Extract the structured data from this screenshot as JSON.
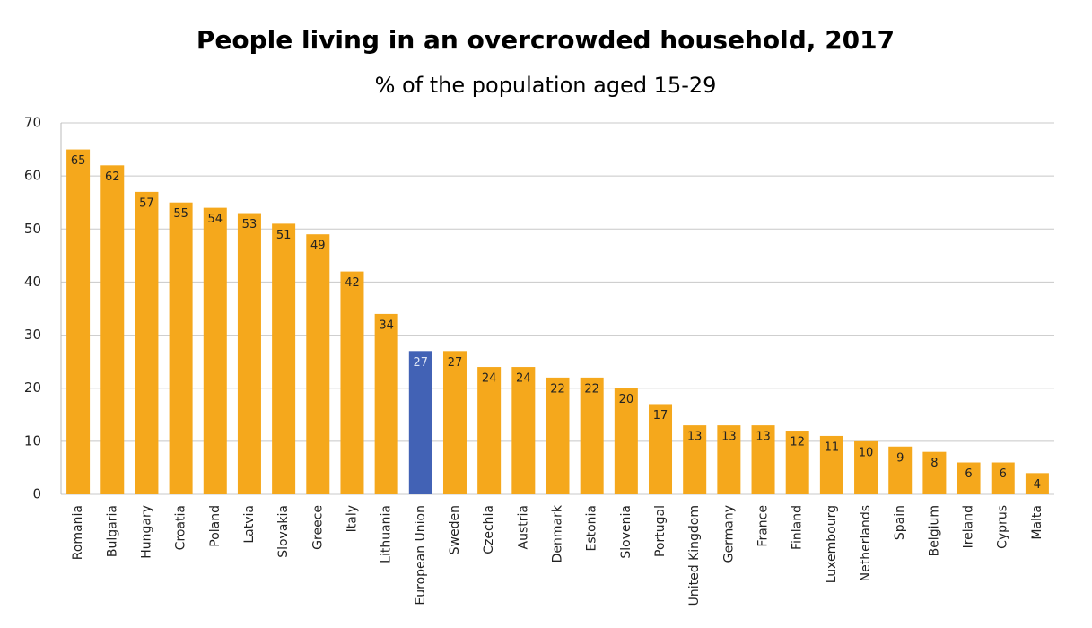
{
  "chart_data": {
    "type": "bar",
    "title": "People living in an overcrowded household, 2017",
    "subtitle": "% of the population aged 15-29",
    "categories": [
      "Romania",
      "Bulgaria",
      "Hungary",
      "Croatia",
      "Poland",
      "Latvia",
      "Slovakia",
      "Greece",
      "Italy",
      "Lithuania",
      "European Union",
      "Sweden",
      "Czechia",
      "Austria",
      "Denmark",
      "Estonia",
      "Slovenia",
      "Portugal",
      "United Kingdom",
      "Germany",
      "France",
      "Finland",
      "Luxembourg",
      "Netherlands",
      "Spain",
      "Belgium",
      "Ireland",
      "Cyprus",
      "Malta"
    ],
    "values": [
      65,
      62,
      57,
      55,
      54,
      53,
      51,
      49,
      42,
      34,
      27,
      27,
      24,
      24,
      22,
      22,
      20,
      17,
      13,
      13,
      13,
      12,
      11,
      10,
      9,
      8,
      6,
      6,
      4
    ],
    "colors": [
      "#f5a81c",
      "#f5a81c",
      "#f5a81c",
      "#f5a81c",
      "#f5a81c",
      "#f5a81c",
      "#f5a81c",
      "#f5a81c",
      "#f5a81c",
      "#f5a81c",
      "#4262b5",
      "#f5a81c",
      "#f5a81c",
      "#f5a81c",
      "#f5a81c",
      "#f5a81c",
      "#f5a81c",
      "#f5a81c",
      "#f5a81c",
      "#f5a81c",
      "#f5a81c",
      "#f5a81c",
      "#f5a81c",
      "#f5a81c",
      "#f5a81c",
      "#f5a81c",
      "#f5a81c",
      "#f5a81c",
      "#f5a81c"
    ],
    "ylim": [
      0,
      70
    ],
    "yticks": [
      0,
      10,
      20,
      30,
      40,
      50,
      60,
      70
    ],
    "grid": true
  }
}
